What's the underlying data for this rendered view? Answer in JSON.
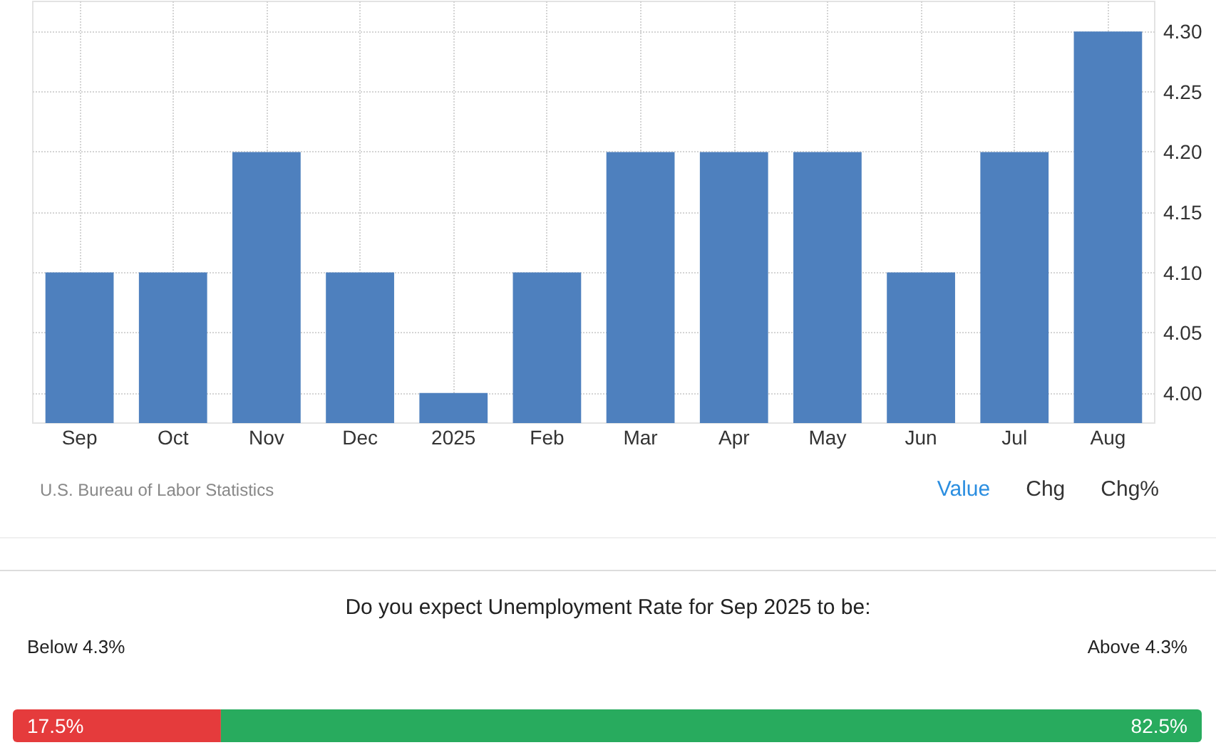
{
  "chart_data": [
    {
      "type": "bar",
      "categories": [
        "Sep",
        "Oct",
        "Nov",
        "Dec",
        "2025",
        "Feb",
        "Mar",
        "Apr",
        "May",
        "Jun",
        "Jul",
        "Aug"
      ],
      "values": [
        4.1,
        4.1,
        4.2,
        4.1,
        4.0,
        4.1,
        4.2,
        4.2,
        4.2,
        4.1,
        4.2,
        4.3
      ],
      "color": "#4e80be",
      "ylim": [
        3.975,
        4.325
      ],
      "yticks": [
        {
          "value": 4,
          "label": "4.00"
        },
        4.05,
        {
          "value": 4.1,
          "label": "4.10"
        },
        4.15,
        {
          "value": 4.2,
          "label": "4.20"
        },
        4.25,
        {
          "value": 4.3,
          "label": "4.30"
        }
      ],
      "grid": true,
      "annotations": [
        "U.S. Bureau of Labor Statistics",
        "Value",
        "Chg",
        "Chg%"
      ]
    },
    {
      "type": "bar",
      "orientation": "horizontal",
      "stacked": true,
      "title": "Do you expect Unemployment Rate for Sep 2025 to be:",
      "categories": [
        null
      ],
      "series": [
        {
          "name": "Below 4.3%",
          "color": "#e53b3c",
          "values": [
            17.5
          ],
          "value_labels": [
            "17.5%"
          ]
        },
        {
          "name": "Above 4.3%",
          "color": "#28ab5e",
          "values": [
            82.5
          ],
          "value_labels": [
            "82.5%"
          ]
        }
      ],
      "xlim": [
        0,
        100
      ]
    }
  ]
}
